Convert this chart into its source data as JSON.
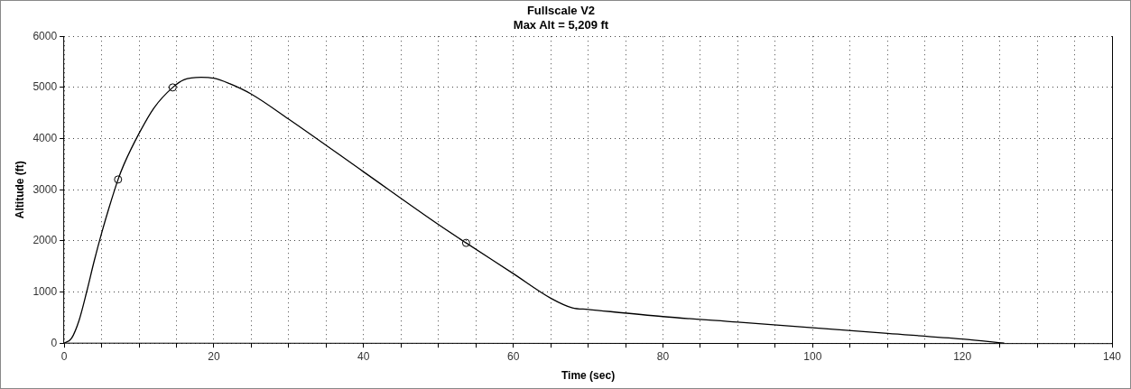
{
  "chart_data": {
    "type": "line",
    "title": "Fullscale V2",
    "subtitle": "Max Alt = 5,209 ft",
    "xlabel": "Time (sec)",
    "ylabel": "Altitude (ft)",
    "xlim": [
      0,
      140
    ],
    "ylim": [
      0,
      6000
    ],
    "xticks": [
      0,
      {
        "value": 5,
        "label": null
      },
      {
        "value": 10,
        "label": null
      },
      {
        "value": 15,
        "label": null
      },
      20,
      {
        "value": 25,
        "label": null
      },
      {
        "value": 30,
        "label": null
      },
      {
        "value": 35,
        "label": null
      },
      40,
      {
        "value": 45,
        "label": null
      },
      {
        "value": 50,
        "label": null
      },
      {
        "value": 55,
        "label": null
      },
      60,
      {
        "value": 65,
        "label": null
      },
      {
        "value": 70,
        "label": null
      },
      {
        "value": 75,
        "label": null
      },
      80,
      {
        "value": 85,
        "label": null
      },
      {
        "value": 90,
        "label": null
      },
      {
        "value": 95,
        "label": null
      },
      100,
      {
        "value": 105,
        "label": null
      },
      {
        "value": 110,
        "label": null
      },
      {
        "value": 115,
        "label": null
      },
      120,
      {
        "value": 125,
        "label": null
      },
      {
        "value": 130,
        "label": null
      },
      {
        "value": 135,
        "label": null
      },
      140
    ],
    "yticks": [
      0,
      1000,
      2000,
      3000,
      4000,
      5000,
      6000
    ],
    "grid": true,
    "legend": false,
    "series": [
      {
        "color": "#000000",
        "marker": "none",
        "x": [
          0,
          1,
          2,
          3,
          4,
          5,
          6,
          7.2,
          8,
          10,
          12,
          14.5,
          16,
          18.3,
          20,
          22,
          25,
          30,
          40,
          50,
          53.7,
          60,
          65,
          67.9,
          70,
          80,
          90,
          100,
          110,
          120,
          125.6
        ],
        "values": [
          0,
          100,
          450,
          1000,
          1600,
          2150,
          2650,
          3200,
          3500,
          4100,
          4600,
          5000,
          5150,
          5200,
          5180,
          5080,
          4870,
          4380,
          3350,
          2320,
          1960,
          1360,
          880,
          690,
          660,
          520,
          410,
          300,
          190,
          80,
          0
        ]
      },
      {
        "type": "scatter",
        "color": "#000000",
        "marker": "circle",
        "x": [
          7.2,
          14.5,
          53.7
        ],
        "values": [
          3200,
          5000,
          1960
        ]
      }
    ]
  }
}
